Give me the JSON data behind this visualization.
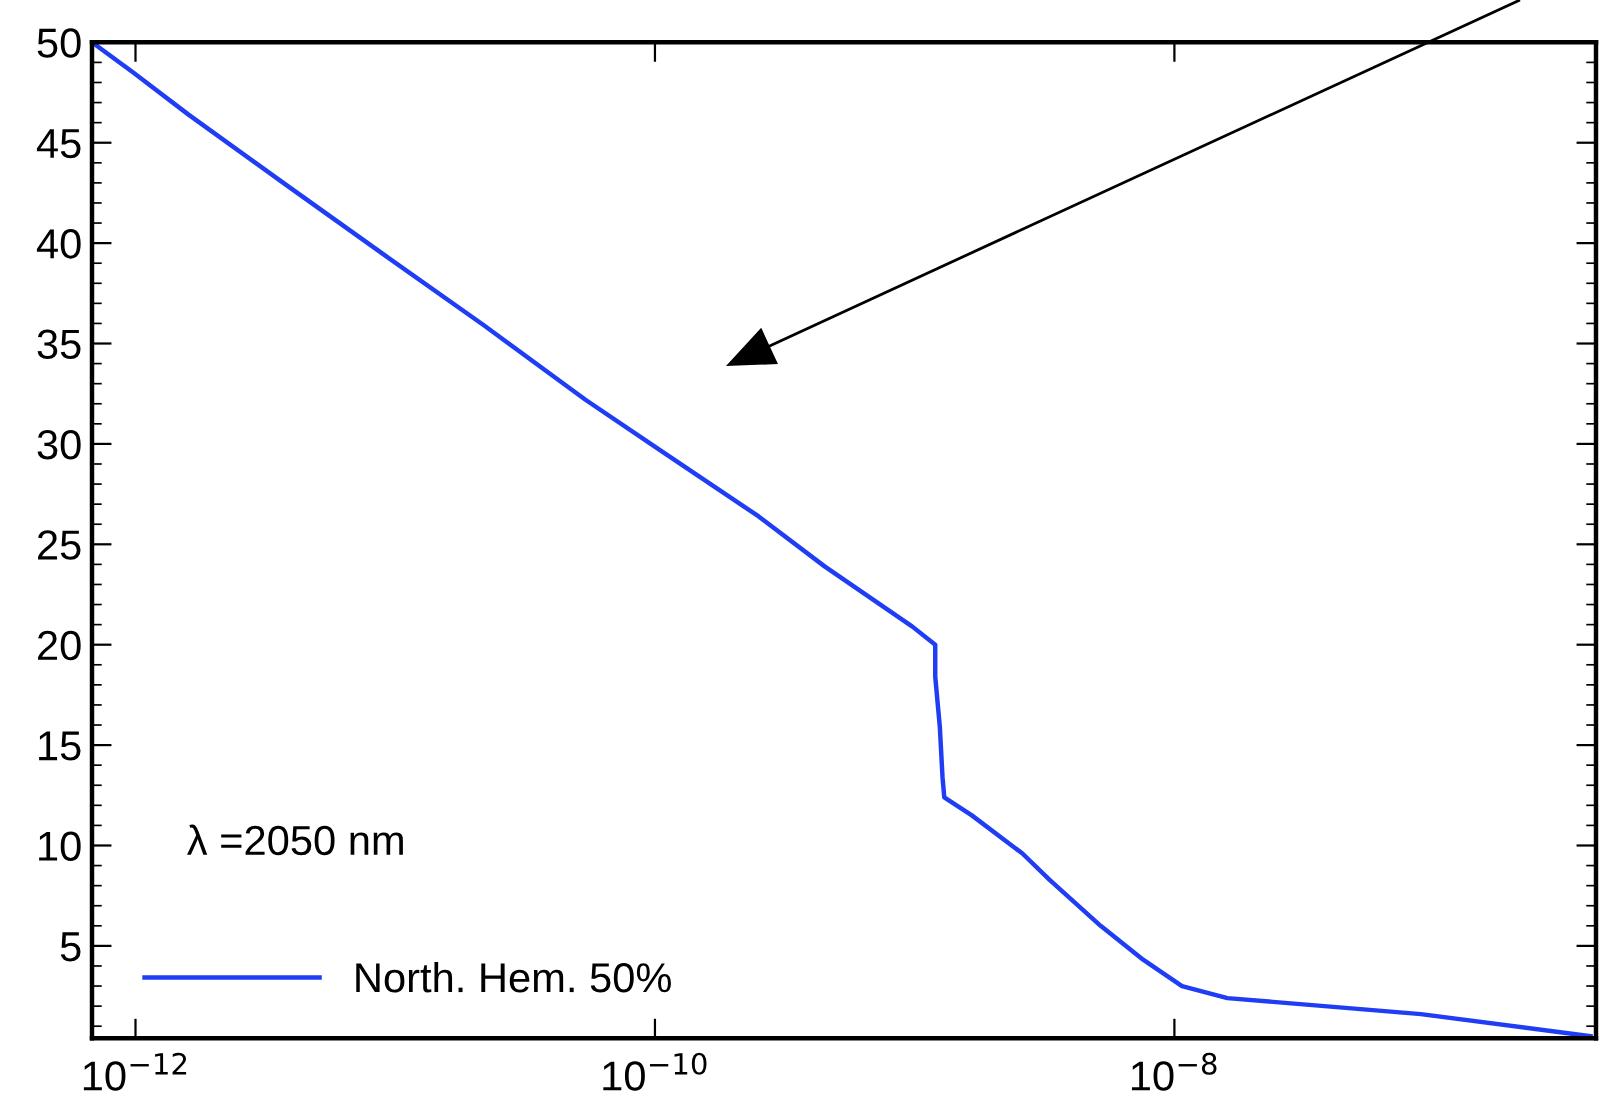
{
  "chart_data": {
    "type": "line",
    "log": "x",
    "x": [
      6.8e-13,
      9.8e-13,
      1.6e-12,
      3.8e-12,
      9.1e-12,
      2.2e-11,
      5.4e-11,
      1.07e-10,
      2.5e-10,
      4.5e-10,
      9.8e-10,
      1.2e-09,
      1.2e-09,
      1.25e-09,
      1.28e-09,
      1.3e-09,
      1.66e-09,
      2.6e-09,
      3.3e-09,
      5.2e-09,
      7.6e-09,
      1.07e-08,
      1.6e-08,
      8.9e-08,
      4e-07
    ],
    "series": [
      {
        "name": "North. Hem. 50%",
        "color": "#1f3df5",
        "values": [
          50,
          48.5,
          46.4,
          42.9,
          39.4,
          35.9,
          32.2,
          29.6,
          26.4,
          23.9,
          20.9,
          20.0,
          18.4,
          15.9,
          13.4,
          12.4,
          11.5,
          9.6,
          8.3,
          6.0,
          4.3,
          3.0,
          2.4,
          1.6,
          0.5
        ]
      }
    ],
    "xlim": [
      6.8e-13,
      4.2e-07
    ],
    "xticks": [
      {
        "value": 1e-12,
        "label": "10$^{−12}$"
      },
      {
        "value": 1e-10,
        "label": "10$^{−10}$"
      },
      {
        "value": 1e-08,
        "label": "10$^{−8}$"
      }
    ],
    "ylim": [
      0.4,
      50
    ],
    "yticks": [
      5,
      10,
      15,
      20,
      25,
      30,
      35,
      40,
      45,
      50
    ],
    "annotations": [
      "λ =2050 nm"
    ],
    "legend": "bottom left",
    "grid": false,
    "marker": "none",
    "line_style": "solid"
  }
}
